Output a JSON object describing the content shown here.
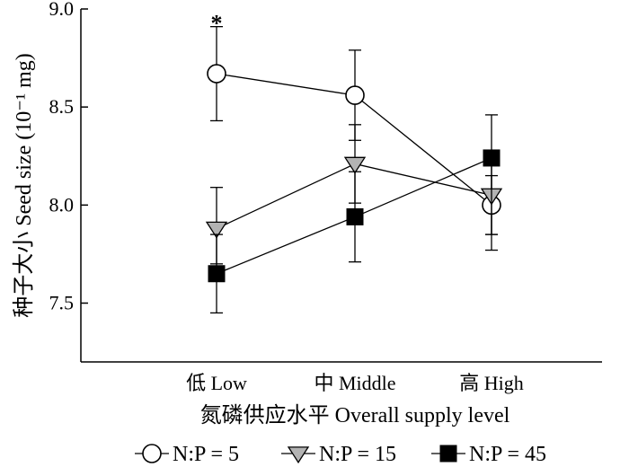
{
  "chart_data": {
    "type": "line",
    "title": "",
    "xlabel": "氮磷供应水平 Overall supply level",
    "ylabel": "种子大小 Seed size (10⁻¹ mg)",
    "categories": [
      "低 Low",
      "中 Middle",
      "高 High"
    ],
    "ylim": [
      7.2,
      9.0
    ],
    "yticks": [
      "7.5",
      "8.0",
      "8.5",
      "9.0"
    ],
    "series": [
      {
        "name": "N:P = 5",
        "marker": "circle-open",
        "color": "#000000",
        "fill": "#ffffff",
        "values": [
          8.67,
          8.56,
          8.0
        ],
        "err_low": [
          8.43,
          8.33,
          7.85
        ],
        "err_high": [
          8.91,
          8.79,
          8.15
        ]
      },
      {
        "name": "N:P = 15",
        "marker": "triangle-down",
        "color": "#000000",
        "fill": "#b3b3b3",
        "values": [
          7.88,
          8.21,
          8.05
        ],
        "err_low": [
          7.7,
          8.01,
          7.85
        ],
        "err_high": [
          8.09,
          8.41,
          8.25
        ]
      },
      {
        "name": "N:P = 45",
        "marker": "square-filled",
        "color": "#000000",
        "fill": "#000000",
        "values": [
          7.65,
          7.94,
          8.24
        ],
        "err_low": [
          7.45,
          7.71,
          7.77
        ],
        "err_high": [
          7.85,
          8.17,
          8.46
        ]
      }
    ],
    "annotations": [
      {
        "text": "*",
        "category": 0,
        "value": 8.97
      }
    ],
    "grid": false,
    "legend_position": "bottom"
  }
}
